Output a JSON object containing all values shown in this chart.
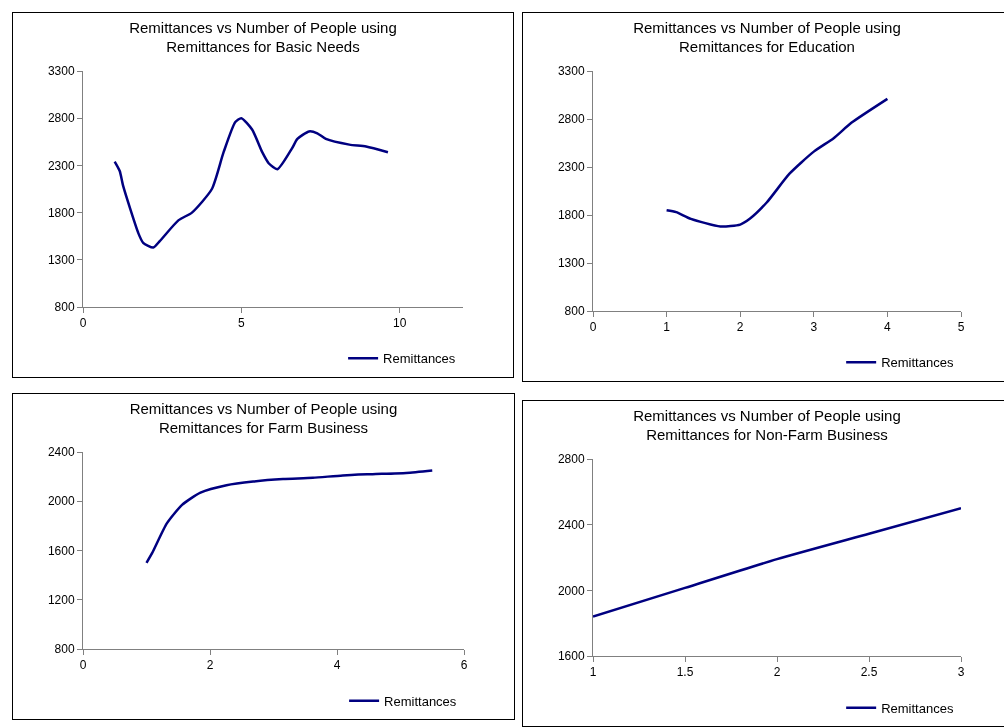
{
  "chart_data": [
    {
      "type": "line",
      "title": "Remittances vs Number of People using Remittances for Basic Needs",
      "x": [
        1.0,
        1.16,
        1.27,
        1.75,
        1.9,
        2.22,
        2.43,
        3.02,
        3.44,
        4.07,
        4.44,
        4.81,
        5.0,
        5.34,
        5.66,
        5.87,
        6.14,
        6.6,
        6.77,
        7.14,
        7.4,
        7.67,
        8.41,
        8.94,
        9.63
      ],
      "series": [
        {
          "name": "Remittances",
          "color": "#000080",
          "values": [
            2340,
            2240,
            2080,
            1580,
            1480,
            1430,
            1500,
            1720,
            1800,
            2050,
            2440,
            2760,
            2800,
            2680,
            2440,
            2320,
            2260,
            2480,
            2580,
            2660,
            2640,
            2580,
            2520,
            2500,
            2440
          ]
        }
      ],
      "xlim": [
        0,
        12
      ],
      "xticks": [
        0,
        5,
        10
      ],
      "ylim": [
        800,
        3300
      ],
      "yticks": [
        800,
        1300,
        1800,
        2300,
        2800,
        3300
      ],
      "grid": false,
      "legend": "bottom right",
      "marker": "none",
      "line_style": "solid"
    },
    {
      "type": "line",
      "title": "Remittances vs Number of People using Remittances for Education",
      "x": [
        1.0,
        1.13,
        1.33,
        1.73,
        2.0,
        2.13,
        2.36,
        2.67,
        3.0,
        3.27,
        3.51,
        4.0
      ],
      "series": [
        {
          "name": "Remittances",
          "color": "#000080",
          "values": [
            1850,
            1830,
            1760,
            1680,
            1700,
            1760,
            1930,
            2230,
            2460,
            2600,
            2760,
            3010
          ]
        }
      ],
      "xlim": [
        0,
        5
      ],
      "xticks": [
        0,
        1,
        2,
        3,
        4,
        5
      ],
      "ylim": [
        800,
        3300
      ],
      "yticks": [
        800,
        1300,
        1800,
        2300,
        2800,
        3300
      ],
      "grid": false,
      "legend": "bottom right",
      "marker": "none",
      "line_style": "solid"
    },
    {
      "type": "line",
      "title": "Remittances vs Number of People using Remittances for Farm Business",
      "x": [
        1.0,
        1.09,
        1.32,
        1.56,
        1.85,
        2.26,
        2.68,
        3.15,
        3.62,
        4.09,
        4.56,
        5.09,
        5.5
      ],
      "series": [
        {
          "name": "Remittances",
          "color": "#000080",
          "values": [
            1500,
            1580,
            1820,
            1970,
            2070,
            2130,
            2160,
            2180,
            2190,
            2210,
            2220,
            2230,
            2250
          ]
        }
      ],
      "xlim": [
        0,
        6
      ],
      "xticks": [
        0,
        2,
        4,
        6
      ],
      "ylim": [
        800,
        2400
      ],
      "yticks": [
        800,
        1200,
        1600,
        2000,
        2400
      ],
      "grid": false,
      "legend": "bottom right",
      "marker": "none",
      "line_style": "solid"
    },
    {
      "type": "line",
      "title": "Remittances vs Number of People using Remittances for Non-Farm Business",
      "x": [
        1,
        1.5,
        2,
        2.5,
        3
      ],
      "series": [
        {
          "name": "Remittances",
          "color": "#000080",
          "values": [
            1840,
            2015,
            2190,
            2345,
            2500
          ]
        }
      ],
      "xlim": [
        1,
        3
      ],
      "xticks": [
        1,
        1.5,
        2,
        2.5,
        3
      ],
      "ylim": [
        1600,
        2800
      ],
      "yticks": [
        1600,
        2000,
        2400,
        2800
      ],
      "grid": false,
      "legend": "bottom right",
      "marker": "none",
      "line_style": "solid"
    }
  ]
}
